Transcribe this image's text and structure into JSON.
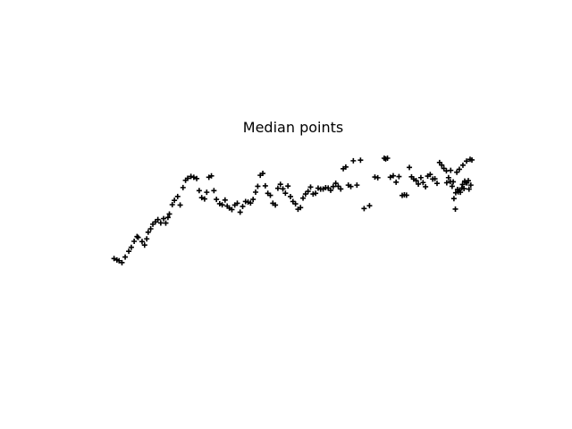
{
  "chart_data": {
    "type": "scatter",
    "title": "Median points",
    "xlabel": "",
    "ylabel": "",
    "axes_visible": false,
    "grid": false,
    "marker": "plus",
    "marker_color": "#000000",
    "xlim": [
      0,
      1
    ],
    "ylim": [
      0,
      1
    ],
    "points": [
      [
        0.004,
        0.143
      ],
      [
        0.012,
        0.131
      ],
      [
        0.018,
        0.124
      ],
      [
        0.026,
        0.108
      ],
      [
        0.035,
        0.156
      ],
      [
        0.045,
        0.205
      ],
      [
        0.052,
        0.239
      ],
      [
        0.06,
        0.29
      ],
      [
        0.068,
        0.331
      ],
      [
        0.071,
        0.323
      ],
      [
        0.082,
        0.288
      ],
      [
        0.089,
        0.258
      ],
      [
        0.095,
        0.311
      ],
      [
        0.099,
        0.368
      ],
      [
        0.106,
        0.397
      ],
      [
        0.112,
        0.436
      ],
      [
        0.119,
        0.456
      ],
      [
        0.126,
        0.476
      ],
      [
        0.134,
        0.447
      ],
      [
        0.142,
        0.484
      ],
      [
        0.148,
        0.446
      ],
      [
        0.154,
        0.494
      ],
      [
        0.158,
        0.523
      ],
      [
        0.166,
        0.603
      ],
      [
        0.172,
        0.64
      ],
      [
        0.181,
        0.673
      ],
      [
        0.188,
        0.6
      ],
      [
        0.196,
        0.749
      ],
      [
        0.203,
        0.811
      ],
      [
        0.209,
        0.828
      ],
      [
        0.218,
        0.844
      ],
      [
        0.226,
        0.837
      ],
      [
        0.234,
        0.826
      ],
      [
        0.241,
        0.723
      ],
      [
        0.248,
        0.663
      ],
      [
        0.256,
        0.652
      ],
      [
        0.262,
        0.709
      ],
      [
        0.268,
        0.837
      ],
      [
        0.275,
        0.849
      ],
      [
        0.282,
        0.723
      ],
      [
        0.289,
        0.648
      ],
      [
        0.298,
        0.611
      ],
      [
        0.305,
        0.602
      ],
      [
        0.313,
        0.643
      ],
      [
        0.319,
        0.591
      ],
      [
        0.325,
        0.574
      ],
      [
        0.332,
        0.561
      ],
      [
        0.34,
        0.6
      ],
      [
        0.347,
        0.615
      ],
      [
        0.355,
        0.539
      ],
      [
        0.362,
        0.588
      ],
      [
        0.37,
        0.63
      ],
      [
        0.377,
        0.625
      ],
      [
        0.384,
        0.617
      ],
      [
        0.391,
        0.648
      ],
      [
        0.398,
        0.71
      ],
      [
        0.404,
        0.76
      ],
      [
        0.411,
        0.854
      ],
      [
        0.418,
        0.87
      ],
      [
        0.425,
        0.764
      ],
      [
        0.432,
        0.7
      ],
      [
        0.439,
        0.683
      ],
      [
        0.446,
        0.615
      ],
      [
        0.453,
        0.6
      ],
      [
        0.46,
        0.743
      ],
      [
        0.467,
        0.777
      ],
      [
        0.474,
        0.738
      ],
      [
        0.481,
        0.701
      ],
      [
        0.488,
        0.762
      ],
      [
        0.495,
        0.672
      ],
      [
        0.502,
        0.63
      ],
      [
        0.509,
        0.61
      ],
      [
        0.516,
        0.564
      ],
      [
        0.523,
        0.578
      ],
      [
        0.53,
        0.659
      ],
      [
        0.537,
        0.694
      ],
      [
        0.544,
        0.717
      ],
      [
        0.551,
        0.753
      ],
      [
        0.558,
        0.694
      ],
      [
        0.565,
        0.7
      ],
      [
        0.572,
        0.744
      ],
      [
        0.579,
        0.736
      ],
      [
        0.586,
        0.737
      ],
      [
        0.593,
        0.748
      ],
      [
        0.6,
        0.745
      ],
      [
        0.607,
        0.726
      ],
      [
        0.614,
        0.758
      ],
      [
        0.621,
        0.786
      ],
      [
        0.628,
        0.76
      ],
      [
        0.635,
        0.737
      ],
      [
        0.642,
        0.91
      ],
      [
        0.649,
        0.925
      ],
      [
        0.656,
        0.77
      ],
      [
        0.663,
        0.758
      ],
      [
        0.67,
        0.978
      ],
      [
        0.68,
        0.77
      ],
      [
        0.69,
        0.983
      ],
      [
        0.7,
        0.57
      ],
      [
        0.715,
        0.594
      ],
      [
        0.73,
        0.839
      ],
      [
        0.738,
        0.833
      ],
      [
        0.756,
        1.0
      ],
      [
        0.76,
        0.993
      ],
      [
        0.765,
        1.0
      ],
      [
        0.773,
        0.837
      ],
      [
        0.781,
        0.85
      ],
      [
        0.789,
        0.795
      ],
      [
        0.797,
        0.843
      ],
      [
        0.806,
        0.682
      ],
      [
        0.812,
        0.687
      ],
      [
        0.818,
        0.684
      ],
      [
        0.826,
        0.921
      ],
      [
        0.832,
        0.841
      ],
      [
        0.838,
        0.822
      ],
      [
        0.845,
        0.808
      ],
      [
        0.851,
        0.779
      ],
      [
        0.858,
        0.834
      ],
      [
        0.864,
        0.792
      ],
      [
        0.871,
        0.756
      ],
      [
        0.877,
        0.847
      ],
      [
        0.884,
        0.861
      ],
      [
        0.891,
        0.822
      ],
      [
        0.897,
        0.824
      ],
      [
        0.903,
        0.785
      ],
      [
        0.91,
        0.963
      ],
      [
        0.916,
        0.941
      ],
      [
        0.922,
        0.913
      ],
      [
        0.929,
        0.892
      ],
      [
        0.935,
        0.834
      ],
      [
        0.941,
        0.896
      ],
      [
        0.948,
        0.798
      ],
      [
        0.954,
        0.565
      ],
      [
        0.96,
        0.733
      ],
      [
        0.966,
        0.729
      ],
      [
        0.972,
        0.745
      ],
      [
        0.978,
        0.74
      ],
      [
        0.984,
        0.791
      ],
      [
        0.99,
        0.808
      ],
      [
        0.997,
        0.77
      ],
      [
        0.95,
        0.655
      ],
      [
        0.955,
        0.705
      ],
      [
        0.962,
        0.712
      ],
      [
        0.968,
        0.709
      ],
      [
        0.974,
        0.775
      ],
      [
        0.98,
        0.804
      ],
      [
        0.986,
        0.789
      ],
      [
        0.992,
        0.736
      ],
      [
        0.958,
        0.88
      ],
      [
        0.965,
        0.905
      ],
      [
        0.975,
        0.94
      ],
      [
        0.985,
        0.975
      ],
      [
        0.995,
        0.99
      ],
      [
        1.0,
        0.985
      ],
      [
        0.94,
        0.8
      ],
      [
        0.945,
        0.76
      ],
      [
        0.93,
        0.79
      ]
    ]
  }
}
